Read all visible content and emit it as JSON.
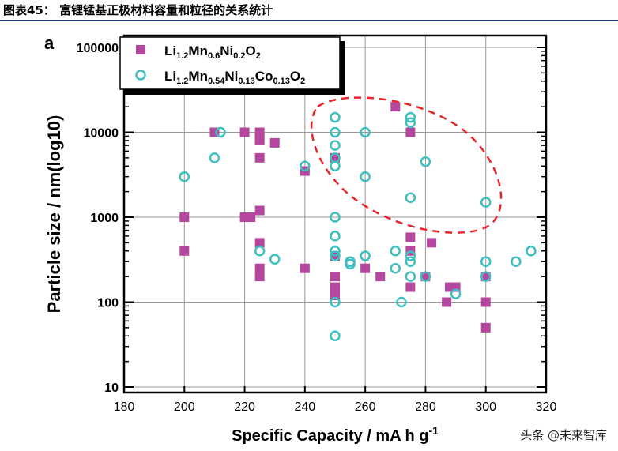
{
  "header": {
    "title": "图表45：  富锂锰基正极材料容量和粒径的关系统计"
  },
  "watermark": "头条 @未来智库",
  "chart_data": {
    "type": "scatter",
    "panel_label": "a",
    "xlabel": "Specific Capacity / mA h g-1",
    "ylabel": "Particle size / nm(log10)",
    "xlim": [
      180,
      320
    ],
    "ylim": [
      10,
      100000
    ],
    "yscale": "log",
    "grid": true,
    "legend_placement": "top-left",
    "xticks": [
      "180",
      "200",
      "220",
      "240",
      "260",
      "280",
      "300",
      "320"
    ],
    "yticks": [
      "10",
      "100",
      "1000",
      "10000",
      "100000"
    ],
    "series": [
      {
        "name": "Li1.2Mn0.6Ni0.2O2",
        "marker": "square",
        "color": "#b5479e",
        "points": [
          [
            210,
            10000
          ],
          [
            220,
            10000
          ],
          [
            225,
            10000
          ],
          [
            225,
            8500
          ],
          [
            225,
            8000
          ],
          [
            230,
            7500
          ],
          [
            225,
            5000
          ],
          [
            240,
            3500
          ],
          [
            250,
            5000
          ],
          [
            200,
            1000
          ],
          [
            220,
            1000
          ],
          [
            222,
            1000
          ],
          [
            225,
            1200
          ],
          [
            200,
            400
          ],
          [
            225,
            500
          ],
          [
            240,
            250
          ],
          [
            225,
            250
          ],
          [
            225,
            200
          ],
          [
            250,
            350
          ],
          [
            250,
            200
          ],
          [
            250,
            150
          ],
          [
            250,
            130
          ],
          [
            250,
            120
          ],
          [
            260,
            250
          ],
          [
            265,
            200
          ],
          [
            270,
            20000
          ],
          [
            275,
            10000
          ],
          [
            275,
            580
          ],
          [
            275,
            400
          ],
          [
            275,
            150
          ],
          [
            280,
            200
          ],
          [
            282,
            500
          ],
          [
            287,
            100
          ],
          [
            288,
            150
          ],
          [
            290,
            150
          ],
          [
            300,
            200
          ],
          [
            300,
            100
          ],
          [
            300,
            50
          ]
        ]
      },
      {
        "name": "Li1.2Mn0.54Ni0.13Co0.13O2",
        "marker": "circle",
        "color": "#3fbfc0",
        "points": [
          [
            200,
            3000
          ],
          [
            210,
            5000
          ],
          [
            212,
            10000
          ],
          [
            225,
            400
          ],
          [
            230,
            320
          ],
          [
            240,
            4000
          ],
          [
            250,
            15000
          ],
          [
            250,
            10000
          ],
          [
            250,
            7000
          ],
          [
            250,
            5000
          ],
          [
            250,
            4000
          ],
          [
            250,
            1000
          ],
          [
            250,
            600
          ],
          [
            250,
            400
          ],
          [
            250,
            350
          ],
          [
            250,
            100
          ],
          [
            250,
            40
          ],
          [
            255,
            300
          ],
          [
            255,
            280
          ],
          [
            260,
            10000
          ],
          [
            260,
            3000
          ],
          [
            260,
            350
          ],
          [
            270,
            400
          ],
          [
            270,
            250
          ],
          [
            272,
            100
          ],
          [
            275,
            15000
          ],
          [
            275,
            13000
          ],
          [
            275,
            1700
          ],
          [
            275,
            350
          ],
          [
            275,
            300
          ],
          [
            275,
            200
          ],
          [
            280,
            4500
          ],
          [
            280,
            200
          ],
          [
            290,
            125
          ],
          [
            300,
            1500
          ],
          [
            300,
            300
          ],
          [
            300,
            200
          ],
          [
            310,
            300
          ],
          [
            315,
            400
          ]
        ]
      }
    ],
    "annotation": {
      "shape": "dashed ellipse",
      "color": "#e8262b"
    }
  }
}
